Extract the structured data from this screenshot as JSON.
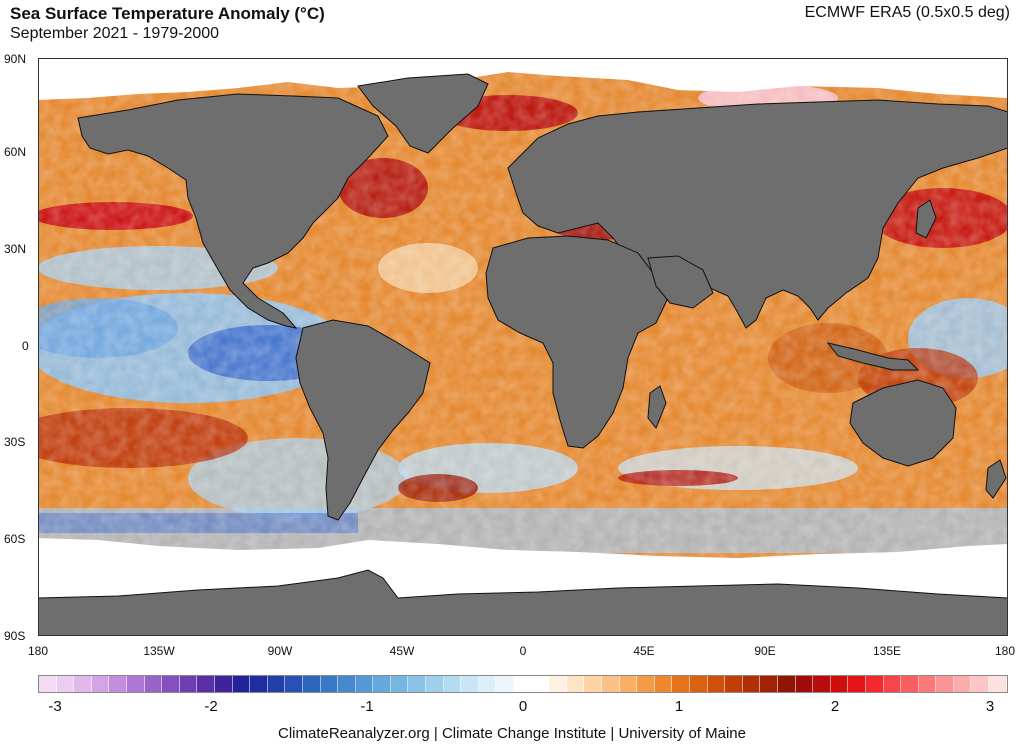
{
  "header": {
    "title": "Sea Surface Temperature Anomaly (°C)",
    "subtitle": "September 2021 - 1979-2000",
    "source": "ECMWF ERA5 (0.5x0.5 deg)"
  },
  "axes": {
    "lat_labels": [
      "90N",
      "60N",
      "30N",
      "0",
      "30S",
      "60S",
      "90S"
    ],
    "lon_labels": [
      "180",
      "135W",
      "90W",
      "45W",
      "0",
      "45E",
      "90E",
      "135E",
      "180"
    ]
  },
  "colorbar": {
    "ticks": [
      "-3",
      "-2",
      "-1",
      "0",
      "1",
      "2",
      "3"
    ],
    "range": [
      -3,
      3
    ],
    "colors": [
      "#f3dcf3",
      "#ecccf0",
      "#e1b8ec",
      "#d3a3e6",
      "#c28ddd",
      "#ae76d3",
      "#9863c8",
      "#8350bd",
      "#6e3fb2",
      "#5a30a6",
      "#3d2599",
      "#24229a",
      "#1f2d9e",
      "#2240a8",
      "#2752b3",
      "#2e65bd",
      "#3878c7",
      "#4489cf",
      "#5399d6",
      "#64a8dc",
      "#77b6e2",
      "#8bc3e7",
      "#a0cfec",
      "#b5dbf1",
      "#caE5f5",
      "#dceef8",
      "#ebf5fb",
      "#ffffff",
      "#ffffff",
      "#fff2e3",
      "#fee3c4",
      "#fdd3a4",
      "#fcc285",
      "#f9af66",
      "#f59b48",
      "#ef872e",
      "#e7741b",
      "#dc6110",
      "#cf500b",
      "#c03f08",
      "#b02f06",
      "#9f2205",
      "#8e1704",
      "#a00a0a",
      "#b80b0b",
      "#cf0d0d",
      "#e3141a",
      "#f22a2e",
      "#f64448",
      "#f85f62",
      "#f9797b",
      "#fa9394",
      "#fbadad",
      "#fcc6c6",
      "#fde0e0"
    ]
  },
  "colors": {
    "land": "#6e6e6e",
    "ice": "#ffffff",
    "warm": "#e07a1f",
    "hot": "#c01010",
    "cool": "#8fc0ea",
    "cold": "#3358c2"
  },
  "footer": {
    "credit": "ClimateReanalyzer.org | Climate Change Institute | University of Maine"
  }
}
